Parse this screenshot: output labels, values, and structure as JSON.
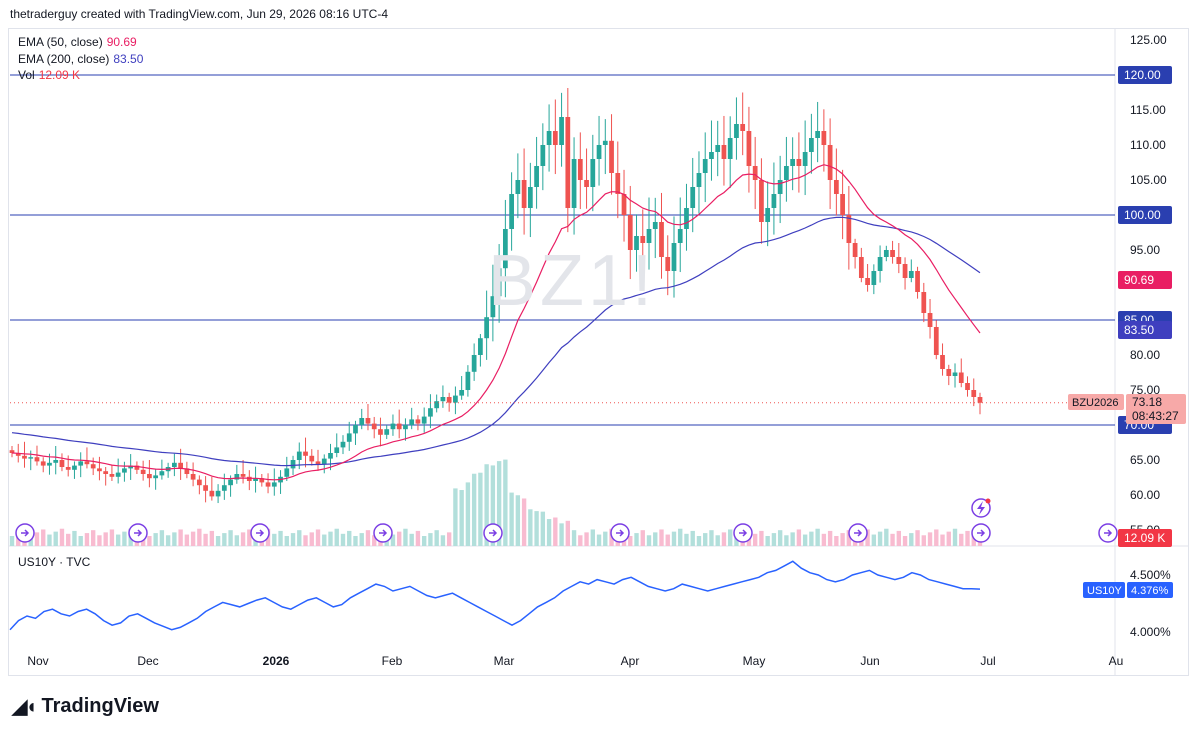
{
  "header": {
    "text": "thetraderguy created with TradingView.com, Jun 29, 2026 08:16 UTC-4"
  },
  "watermark": "BZ1!",
  "legend": {
    "ema50": {
      "label": "EMA (50, close)",
      "value": "90.69",
      "color": "#e91e63"
    },
    "ema200": {
      "label": "EMA (200, close)",
      "value": "83.50",
      "color": "#3f3fbf"
    },
    "vol": {
      "label": "Vol",
      "value": "12.09 K",
      "color": "#f23645"
    }
  },
  "footer": {
    "brand": "TradingView"
  },
  "colors": {
    "up": "#26a69a",
    "down": "#ef5350",
    "upVol": "#b2dfdb",
    "downVol": "#f8bbd0",
    "hline": "#2a3fb0",
    "ema50": "#e91e63",
    "ema200": "#3f3fbf",
    "us10y": "#2962ff"
  },
  "chart_data": [
    {
      "type": "candlestick",
      "symbol": "BZU2026",
      "price_scale": {
        "ticks": [
          "125.00",
          "115.00",
          "110.00",
          "105.00",
          "95.00",
          "80.00",
          "75.00",
          "65.00",
          "60.00",
          "55.00"
        ],
        "range": [
          55,
          125
        ]
      },
      "x_labels": [
        "Nov",
        "Dec",
        "2026",
        "Feb",
        "Mar",
        "Apr",
        "May",
        "Jun",
        "Jul",
        "Au"
      ],
      "horizontal_lines": [
        {
          "label": "120.00",
          "value": 120
        },
        {
          "label": "100.00",
          "value": 100
        },
        {
          "label": "85.00",
          "value": 85
        },
        {
          "label": "70.00",
          "value": 70
        }
      ],
      "last_price": {
        "symbol": "BZU2026",
        "value": "73.18",
        "countdown": "08:43:27"
      },
      "ema50_label": "90.69",
      "ema200_label": "83.50",
      "volume_label": "12.09 K",
      "closes": [
        66,
        65.6,
        65.2,
        65.4,
        64.8,
        64.2,
        64.6,
        65,
        64,
        63.6,
        64.2,
        64.8,
        64.4,
        63.8,
        63.4,
        63,
        62.6,
        63.2,
        63.8,
        64.2,
        63.6,
        63,
        62.4,
        62.8,
        63.4,
        64,
        64.6,
        63.8,
        63,
        62.2,
        61.4,
        60.6,
        59.8,
        60.6,
        61.4,
        62.2,
        63,
        62.6,
        62,
        62.4,
        61.8,
        61.2,
        61.8,
        62.6,
        63.8,
        65,
        66.2,
        65.6,
        64.8,
        64.4,
        65.2,
        66,
        66.8,
        67.6,
        68.8,
        70,
        71,
        70.2,
        69.4,
        68.6,
        69.4,
        70.2,
        69.4,
        70,
        70.8,
        70.2,
        71.2,
        72.4,
        73.4,
        74,
        73.2,
        74.2,
        75,
        77.6,
        80,
        82.4,
        85.4,
        88.4,
        92.4,
        98,
        103,
        105,
        101,
        104,
        107,
        110,
        112,
        110,
        114,
        101,
        108,
        105,
        104,
        108,
        110,
        110.6,
        106,
        103,
        100,
        95,
        97,
        96,
        98,
        99,
        94,
        92,
        96,
        98,
        101,
        104,
        106,
        108,
        109,
        110,
        108,
        111,
        113,
        112,
        107,
        105,
        99,
        101,
        103,
        105,
        107,
        108,
        107,
        109,
        111,
        112,
        110,
        105,
        103,
        100,
        96,
        94,
        91,
        90,
        92,
        94,
        95,
        94,
        93,
        91,
        92,
        89,
        86,
        84,
        80,
        78,
        77,
        77.5,
        76,
        75,
        74,
        73.18
      ],
      "volume_note": "relative bars, peak near early March"
    },
    {
      "type": "line",
      "symbol": "US10Y",
      "source": "TVC",
      "last_value": "4.376%",
      "y_ticks": [
        "4.500%",
        "4.000%"
      ],
      "range": [
        3.9,
        4.65
      ],
      "values": [
        4.02,
        4.1,
        4.14,
        4.12,
        4.18,
        4.2,
        4.16,
        4.14,
        4.18,
        4.2,
        4.16,
        4.1,
        4.06,
        4.08,
        4.14,
        4.16,
        4.12,
        4.08,
        4.05,
        4.02,
        4.04,
        4.08,
        4.12,
        4.18,
        4.22,
        4.26,
        4.24,
        4.22,
        4.25,
        4.28,
        4.3,
        4.26,
        4.22,
        4.2,
        4.24,
        4.28,
        4.3,
        4.26,
        4.22,
        4.24,
        4.3,
        4.34,
        4.38,
        4.42,
        4.4,
        4.36,
        4.38,
        4.4,
        4.36,
        4.32,
        4.3,
        4.32,
        4.34,
        4.3,
        4.26,
        4.22,
        4.18,
        4.14,
        4.1,
        4.06,
        4.1,
        4.16,
        4.22,
        4.26,
        4.3,
        4.36,
        4.4,
        4.44,
        4.42,
        4.46,
        4.44,
        4.42,
        4.46,
        4.48,
        4.44,
        4.4,
        4.38,
        4.36,
        4.38,
        4.42,
        4.4,
        4.38,
        4.36,
        4.38,
        4.4,
        4.42,
        4.44,
        4.46,
        4.48,
        4.52,
        4.54,
        4.58,
        4.62,
        4.56,
        4.52,
        4.5,
        4.46,
        4.44,
        4.46,
        4.5,
        4.52,
        4.54,
        4.5,
        4.48,
        4.46,
        4.48,
        4.52,
        4.5,
        4.46,
        4.44,
        4.42,
        4.4,
        4.38,
        4.38,
        4.376
      ]
    }
  ]
}
